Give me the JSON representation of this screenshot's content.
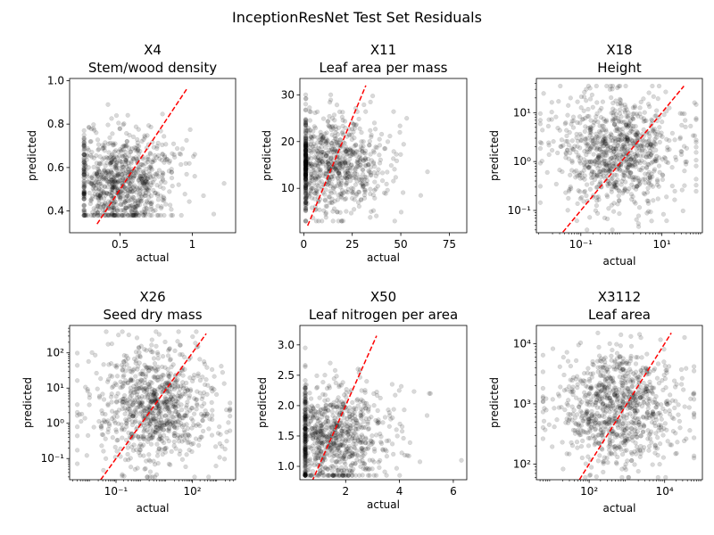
{
  "figure": {
    "suptitle": "InceptionResNet Test Set Residuals"
  },
  "chart_data": [
    {
      "type": "scatter",
      "title": "X4\nStem/wood density",
      "xlabel": "actual",
      "ylabel": "predicted",
      "xscale": "linear",
      "yscale": "linear",
      "xlim": [
        0.15,
        1.3
      ],
      "ylim": [
        0.3,
        1.01
      ],
      "xticks": [
        0.5,
        1.0
      ],
      "yticks": [
        0.4,
        0.6,
        0.8,
        1.0
      ],
      "identity_line": [
        0.34,
        0.96
      ],
      "point_color": "#000000",
      "point_alpha": 0.15,
      "line_color": "#ff0000",
      "cloud": {
        "x_range": [
          0.25,
          1.22
        ],
        "y_range": [
          0.38,
          0.95
        ],
        "x_center": 0.5,
        "y_center": 0.53
      }
    },
    {
      "type": "scatter",
      "title": "X11\nLeaf area per mass",
      "xlabel": "actual",
      "ylabel": "predicted",
      "xscale": "linear",
      "yscale": "linear",
      "xlim": [
        -2,
        84
      ],
      "ylim": [
        0.5,
        33.5
      ],
      "xticks": [
        0,
        25,
        50,
        75
      ],
      "yticks": [
        10,
        20,
        30
      ],
      "identity_line": [
        2,
        32
      ],
      "point_color": "#000000",
      "point_alpha": 0.15,
      "line_color": "#ff0000",
      "cloud": {
        "x_range": [
          1,
          80
        ],
        "y_range": [
          3,
          30
        ],
        "x_center": 12,
        "y_center": 15
      }
    },
    {
      "type": "scatter",
      "title": "X18\nHeight",
      "xlabel": "actual",
      "ylabel": "predicted",
      "xscale": "log",
      "yscale": "log",
      "xlim": [
        0.008,
        100
      ],
      "ylim": [
        0.035,
        50
      ],
      "xticks": [
        0.1,
        10
      ],
      "xtick_labels": [
        "10⁻¹",
        "10¹"
      ],
      "yticks": [
        0.1,
        1,
        10
      ],
      "ytick_labels": [
        "10⁻¹",
        "10⁰",
        "10¹"
      ],
      "identity_line": [
        0.036,
        35
      ],
      "point_color": "#000000",
      "point_alpha": 0.15,
      "line_color": "#ff0000",
      "cloud": {
        "x_range": [
          0.01,
          70
        ],
        "y_range": [
          0.04,
          35
        ],
        "x_center": 0.8,
        "y_center": 1.5
      }
    },
    {
      "type": "scatter",
      "title": "X26\nSeed dry mass",
      "xlabel": "actual",
      "ylabel": "predicted",
      "xscale": "log",
      "yscale": "log",
      "xlim": [
        0.0015,
        5000
      ],
      "ylim": [
        0.025,
        600
      ],
      "xticks": [
        0.1,
        100
      ],
      "xtick_labels": [
        "10⁻¹",
        "10²"
      ],
      "yticks": [
        0.1,
        1,
        10,
        100
      ],
      "ytick_labels": [
        "10⁻¹",
        "10⁰",
        "10¹",
        "10²"
      ],
      "identity_line": [
        0.025,
        350
      ],
      "point_color": "#000000",
      "point_alpha": 0.15,
      "line_color": "#ff0000",
      "cloud": {
        "x_range": [
          0.003,
          3000
        ],
        "y_range": [
          0.03,
          400
        ],
        "x_center": 3,
        "y_center": 3
      }
    },
    {
      "type": "scatter",
      "title": "X50\nLeaf nitrogen per area",
      "xlabel": "actual",
      "ylabel": "predicted",
      "xscale": "linear",
      "yscale": "linear",
      "xlim": [
        0.3,
        6.5
      ],
      "ylim": [
        0.78,
        3.32
      ],
      "xticks": [
        2,
        4,
        6
      ],
      "yticks": [
        1.0,
        1.5,
        2.0,
        2.5,
        3.0
      ],
      "identity_line": [
        0.75,
        3.15
      ],
      "point_color": "#000000",
      "point_alpha": 0.15,
      "line_color": "#ff0000",
      "cloud": {
        "x_range": [
          0.5,
          6.3
        ],
        "y_range": [
          0.85,
          2.95
        ],
        "x_center": 1.4,
        "y_center": 1.5
      }
    },
    {
      "type": "scatter",
      "title": "X3112\nLeaf area",
      "xlabel": "actual",
      "ylabel": "predicted",
      "xscale": "log",
      "yscale": "log",
      "xlim": [
        4,
        100000
      ],
      "ylim": [
        55,
        20000
      ],
      "xticks": [
        100,
        10000
      ],
      "xtick_labels": [
        "10²",
        "10⁴"
      ],
      "yticks": [
        100,
        1000,
        10000
      ],
      "ytick_labels": [
        "10²",
        "10³",
        "10⁴"
      ],
      "identity_line": [
        55,
        15000
      ],
      "point_color": "#000000",
      "point_alpha": 0.15,
      "line_color": "#ff0000",
      "cloud": {
        "x_range": [
          6,
          60000
        ],
        "y_range": [
          60,
          15000
        ],
        "x_center": 600,
        "y_center": 900
      }
    }
  ]
}
